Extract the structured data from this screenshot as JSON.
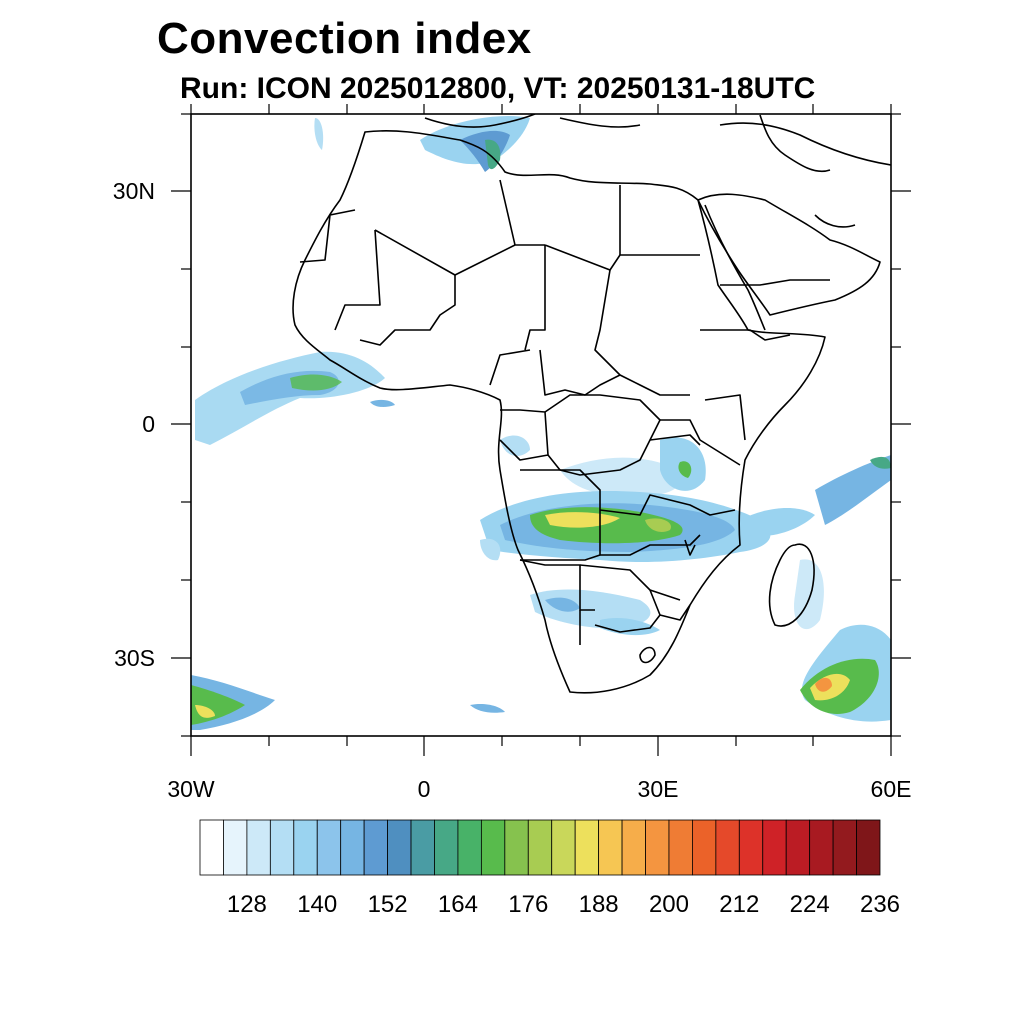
{
  "title": "Convection index",
  "subtitle": "Run: ICON 2025012800,  VT: 20250131-18UTC",
  "map": {
    "region": "Africa",
    "lon_range": [
      -30,
      60
    ],
    "lat_range": [
      -40,
      40
    ],
    "lat_tick_labels": [
      "30N",
      "0",
      "30S"
    ],
    "lon_tick_labels": [
      "30W",
      "0",
      "30E",
      "60E"
    ]
  },
  "colorbar": {
    "labels": [
      "128",
      "140",
      "152",
      "164",
      "176",
      "188",
      "200",
      "212",
      "224",
      "236"
    ],
    "colors": [
      "#ffffff",
      "#e6f4fc",
      "#cde9f8",
      "#b4def4",
      "#9ad3f0",
      "#8cc4eb",
      "#76b5e3",
      "#5e9bd2",
      "#4f8fc0",
      "#4a9ca4",
      "#47a886",
      "#48b268",
      "#58bb4c",
      "#86c24e",
      "#a8cc52",
      "#c9d75a",
      "#ede05c",
      "#f6c653",
      "#f6ad4a",
      "#f49540",
      "#ef7c34",
      "#eb6229",
      "#e5492a",
      "#dd3229",
      "#cf2227",
      "#bb1c24",
      "#a81a21",
      "#931a1e",
      "#7f1619"
    ]
  }
}
